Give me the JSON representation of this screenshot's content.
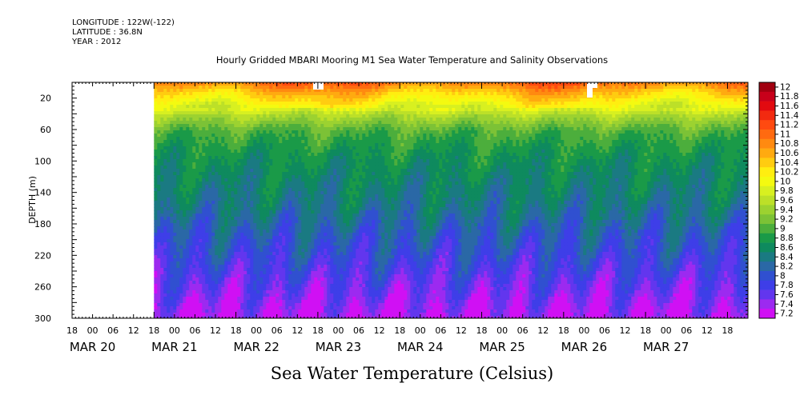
{
  "header": {
    "longitude": "LONGITUDE : 122W(-122)",
    "latitude": "LATITUDE : 36.8N",
    "year": "YEAR : 2012"
  },
  "chart_data": {
    "type": "heatmap",
    "title": "Hourly Gridded MBARI Mooring M1 Sea Water Temperature and Salinity Observations",
    "colorbar_title": "Sea Water Temperature (Celsius)",
    "ylabel": "DEPTH (m)",
    "ylim": [
      300,
      0
    ],
    "y_ticks": [
      20,
      60,
      100,
      140,
      180,
      220,
      260,
      300
    ],
    "y_tick_labels": [
      "20",
      "60",
      "100",
      "140",
      "180",
      "220",
      "260",
      "300"
    ],
    "x_hour_labels": [
      "18",
      "00",
      "06",
      "12",
      "18",
      "00",
      "06",
      "12",
      "18",
      "00",
      "06",
      "12",
      "18",
      "00",
      "06",
      "12",
      "18",
      "00",
      "06",
      "12",
      "18",
      "00",
      "06",
      "12",
      "18",
      "00",
      "06",
      "12",
      "18",
      "00",
      "06",
      "12",
      "18"
    ],
    "x_day_labels": [
      "MAR 20",
      "MAR 21",
      "MAR 22",
      "MAR 23",
      "MAR 24",
      "MAR 25",
      "MAR 26",
      "MAR 27"
    ],
    "data_start_hour": 24,
    "x_range_hours": [
      0,
      198
    ],
    "colorbar_levels": [
      "12",
      "11.8",
      "11.6",
      "11.4",
      "11.2",
      "11",
      "10.8",
      "10.6",
      "10.4",
      "10.2",
      "10",
      "9.8",
      "9.6",
      "9.4",
      "9.2",
      "9",
      "8.8",
      "8.6",
      "8.4",
      "8.2",
      "8",
      "7.8",
      "7.6",
      "7.4",
      "7.2"
    ],
    "colorbar_colors": [
      "#a10010",
      "#c8001a",
      "#e20a10",
      "#f22a10",
      "#ff4a10",
      "#ff6a10",
      "#ff8a10",
      "#ffaa10",
      "#ffcc10",
      "#ffee10",
      "#f4fa10",
      "#d8f020",
      "#bce028",
      "#9cd230",
      "#7cc236",
      "#4cae3c",
      "#1a9a48",
      "#0e8a5e",
      "#1a7a82",
      "#2a68a6",
      "#3050d0",
      "#3e3ee8",
      "#6236ee",
      "#9c2af0",
      "#d010f4"
    ],
    "profile_depth_m": [
      0,
      10,
      20,
      30,
      40,
      60,
      80,
      100,
      130,
      160,
      190,
      220,
      250,
      280,
      300
    ],
    "profile_temp_c": [
      11.0,
      10.6,
      10.3,
      10.0,
      9.6,
      9.1,
      8.9,
      8.75,
      8.6,
      8.45,
      8.2,
      8.0,
      7.75,
      7.5,
      7.35
    ]
  }
}
